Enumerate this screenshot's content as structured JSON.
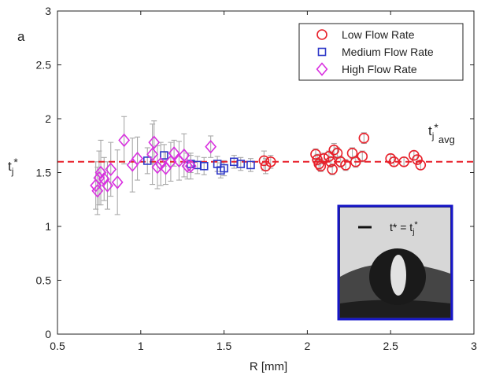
{
  "panel_label": "a",
  "avg_label": "t_j*_avg",
  "inset": {
    "legend_text": "t* = t_j*"
  },
  "chart_data": {
    "type": "scatter",
    "xlabel": "R [mm]",
    "ylabel": "t_j*",
    "xlim": [
      0.5,
      3
    ],
    "ylim": [
      0,
      3
    ],
    "xticks": [
      "0.5",
      "1",
      "1.5",
      "2",
      "2.5",
      "3"
    ],
    "yticks": [
      "0",
      "0.5",
      "1",
      "1.5",
      "2",
      "2.5",
      "3"
    ],
    "grid": false,
    "legend_position": "top-right",
    "reference_line": {
      "y": 1.6,
      "style": "dashed",
      "color": "#e8202a"
    },
    "series": [
      {
        "name": "Low Flow Rate",
        "marker": "circle",
        "color": "#e8202a",
        "points": [
          [
            1.74,
            1.61
          ],
          [
            1.75,
            1.56
          ],
          [
            1.78,
            1.6
          ],
          [
            2.05,
            1.67
          ],
          [
            2.06,
            1.62
          ],
          [
            2.07,
            1.58
          ],
          [
            2.08,
            1.56
          ],
          [
            2.1,
            1.63
          ],
          [
            2.13,
            1.65
          ],
          [
            2.14,
            1.6
          ],
          [
            2.15,
            1.53
          ],
          [
            2.16,
            1.71
          ],
          [
            2.18,
            1.68
          ],
          [
            2.2,
            1.6
          ],
          [
            2.23,
            1.57
          ],
          [
            2.27,
            1.68
          ],
          [
            2.29,
            1.6
          ],
          [
            2.33,
            1.65
          ],
          [
            2.34,
            1.82
          ],
          [
            2.5,
            1.63
          ],
          [
            2.52,
            1.6
          ],
          [
            2.58,
            1.6
          ],
          [
            2.64,
            1.66
          ],
          [
            2.66,
            1.62
          ],
          [
            2.68,
            1.57
          ]
        ],
        "errors": [
          0.09,
          0.07,
          0.06,
          0.05,
          0.05,
          0.05,
          0.05,
          0.05,
          0.05,
          0.05,
          0.05,
          0.06,
          0.05,
          0.05,
          0.05,
          0.05,
          0.05,
          0.05,
          0.05,
          0.04,
          0.04,
          0.04,
          0.04,
          0.04,
          0.04
        ]
      },
      {
        "name": "Medium Flow Rate",
        "marker": "square",
        "color": "#2e38c8",
        "points": [
          [
            1.04,
            1.61
          ],
          [
            1.14,
            1.66
          ],
          [
            1.3,
            1.58
          ],
          [
            1.34,
            1.57
          ],
          [
            1.38,
            1.56
          ],
          [
            1.46,
            1.58
          ],
          [
            1.48,
            1.52
          ],
          [
            1.5,
            1.54
          ],
          [
            1.56,
            1.6
          ],
          [
            1.6,
            1.58
          ],
          [
            1.66,
            1.57
          ]
        ],
        "errors": [
          0.12,
          0.1,
          0.08,
          0.08,
          0.08,
          0.07,
          0.07,
          0.07,
          0.06,
          0.06,
          0.06
        ]
      },
      {
        "name": "High Flow Rate",
        "marker": "diamond",
        "color": "#d930e0",
        "points": [
          [
            0.73,
            1.38
          ],
          [
            0.74,
            1.33
          ],
          [
            0.75,
            1.45
          ],
          [
            0.76,
            1.5
          ],
          [
            0.78,
            1.44
          ],
          [
            0.8,
            1.38
          ],
          [
            0.82,
            1.53
          ],
          [
            0.86,
            1.41
          ],
          [
            0.9,
            1.8
          ],
          [
            0.95,
            1.57
          ],
          [
            0.98,
            1.63
          ],
          [
            1.07,
            1.67
          ],
          [
            1.08,
            1.78
          ],
          [
            1.1,
            1.55
          ],
          [
            1.12,
            1.58
          ],
          [
            1.15,
            1.54
          ],
          [
            1.18,
            1.6
          ],
          [
            1.2,
            1.68
          ],
          [
            1.23,
            1.61
          ],
          [
            1.26,
            1.66
          ],
          [
            1.28,
            1.56
          ],
          [
            1.3,
            1.56
          ],
          [
            1.42,
            1.74
          ]
        ],
        "errors": [
          0.22,
          0.22,
          0.25,
          0.3,
          0.2,
          0.22,
          0.25,
          0.3,
          0.22,
          0.25,
          0.2,
          0.28,
          0.2,
          0.2,
          0.2,
          0.15,
          0.18,
          0.12,
          0.18,
          0.2,
          0.12,
          0.12,
          0.1
        ]
      }
    ]
  }
}
